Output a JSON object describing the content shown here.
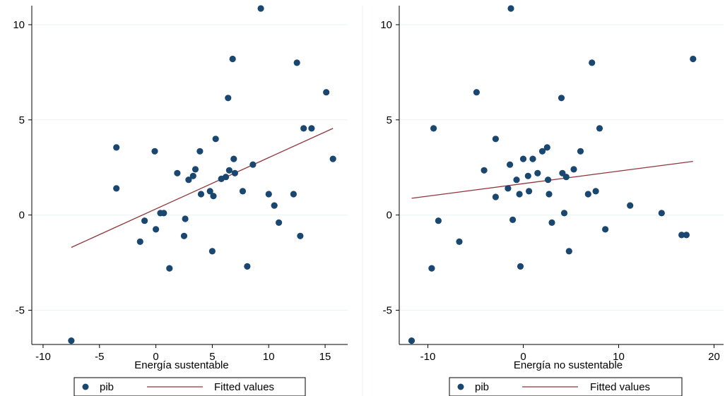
{
  "chart_data": [
    {
      "type": "scatter",
      "xlabel": "Energía sustentable",
      "ylabel": "",
      "xlim": [
        -11,
        17
      ],
      "ylim": [
        -6.8,
        11
      ],
      "xticks": [
        -10,
        -5,
        0,
        5,
        10,
        15
      ],
      "yticks": [
        -5,
        0,
        5,
        10
      ],
      "grid": true,
      "legend": {
        "position": "bottom",
        "entries": [
          "pib",
          "Fitted values"
        ]
      },
      "series": [
        {
          "name": "pib",
          "kind": "points",
          "color": "#1a476f",
          "points": [
            [
              -7.5,
              -6.6
            ],
            [
              -3.5,
              3.55
            ],
            [
              -3.5,
              1.4
            ],
            [
              -1.0,
              -0.3
            ],
            [
              -1.4,
              -1.4
            ],
            [
              -0.1,
              3.35
            ],
            [
              0.0,
              -0.75
            ],
            [
              0.4,
              0.1
            ],
            [
              0.7,
              0.1
            ],
            [
              1.2,
              -2.8
            ],
            [
              1.9,
              2.2
            ],
            [
              2.5,
              -1.1
            ],
            [
              2.6,
              -0.2
            ],
            [
              2.9,
              1.85
            ],
            [
              3.3,
              2.05
            ],
            [
              3.5,
              2.4
            ],
            [
              3.9,
              3.35
            ],
            [
              4.0,
              1.1
            ],
            [
              4.8,
              1.25
            ],
            [
              5.0,
              -1.9
            ],
            [
              5.1,
              1.0
            ],
            [
              5.3,
              4.0
            ],
            [
              5.8,
              1.9
            ],
            [
              6.2,
              2.0
            ],
            [
              6.4,
              6.15
            ],
            [
              6.5,
              2.35
            ],
            [
              6.8,
              8.2
            ],
            [
              6.9,
              2.95
            ],
            [
              7.0,
              2.2
            ],
            [
              7.7,
              1.25
            ],
            [
              8.1,
              -2.7
            ],
            [
              8.6,
              2.65
            ],
            [
              9.3,
              10.85
            ],
            [
              10.0,
              1.1
            ],
            [
              10.5,
              0.5
            ],
            [
              10.9,
              -0.4
            ],
            [
              12.2,
              1.1
            ],
            [
              12.5,
              8.0
            ],
            [
              12.8,
              -1.1
            ],
            [
              13.1,
              4.55
            ],
            [
              13.8,
              4.55
            ],
            [
              15.1,
              6.45
            ],
            [
              15.7,
              2.95
            ]
          ]
        },
        {
          "name": "Fitted values",
          "kind": "line",
          "color": "#90353b",
          "points": [
            [
              -7.5,
              -1.7
            ],
            [
              15.7,
              4.55
            ]
          ]
        }
      ]
    },
    {
      "type": "scatter",
      "xlabel": "Energía no sustentable",
      "ylabel": "",
      "xlim": [
        -13,
        21
      ],
      "ylim": [
        -6.8,
        11
      ],
      "xticks": [
        -10,
        0,
        10,
        20
      ],
      "yticks": [
        -5,
        0,
        5,
        10
      ],
      "grid": true,
      "legend": {
        "position": "bottom",
        "entries": [
          "pib",
          "Fitted values"
        ]
      },
      "series": [
        {
          "name": "pib",
          "kind": "points",
          "color": "#1a476f",
          "points": [
            [
              -11.7,
              -6.6
            ],
            [
              -9.6,
              -2.8
            ],
            [
              -9.4,
              4.55
            ],
            [
              -8.9,
              -0.3
            ],
            [
              -6.7,
              -1.4
            ],
            [
              -4.9,
              6.45
            ],
            [
              -4.1,
              2.35
            ],
            [
              -2.9,
              4.0
            ],
            [
              -2.9,
              0.95
            ],
            [
              -1.4,
              2.65
            ],
            [
              -1.3,
              10.85
            ],
            [
              -1.6,
              1.4
            ],
            [
              -1.1,
              -0.25
            ],
            [
              -0.7,
              1.85
            ],
            [
              -0.4,
              1.1
            ],
            [
              -0.3,
              -2.7
            ],
            [
              0.0,
              2.95
            ],
            [
              0.5,
              2.05
            ],
            [
              0.6,
              1.25
            ],
            [
              1.0,
              2.95
            ],
            [
              1.5,
              2.2
            ],
            [
              2.0,
              3.35
            ],
            [
              2.5,
              3.55
            ],
            [
              2.6,
              1.85
            ],
            [
              2.7,
              1.1
            ],
            [
              3.0,
              -0.4
            ],
            [
              4.0,
              6.15
            ],
            [
              4.1,
              2.2
            ],
            [
              4.3,
              0.1
            ],
            [
              4.5,
              2.0
            ],
            [
              4.8,
              -1.9
            ],
            [
              5.3,
              2.4
            ],
            [
              6.0,
              3.35
            ],
            [
              6.8,
              1.1
            ],
            [
              7.2,
              8.0
            ],
            [
              7.6,
              1.25
            ],
            [
              8.0,
              4.55
            ],
            [
              8.6,
              -0.75
            ],
            [
              11.2,
              0.5
            ],
            [
              14.5,
              0.1
            ],
            [
              16.6,
              -1.05
            ],
            [
              17.1,
              -1.05
            ],
            [
              17.8,
              8.2
            ]
          ]
        },
        {
          "name": "Fitted values",
          "kind": "line",
          "color": "#90353b",
          "points": [
            [
              -11.7,
              0.88
            ],
            [
              17.8,
              2.82
            ]
          ]
        }
      ]
    }
  ]
}
